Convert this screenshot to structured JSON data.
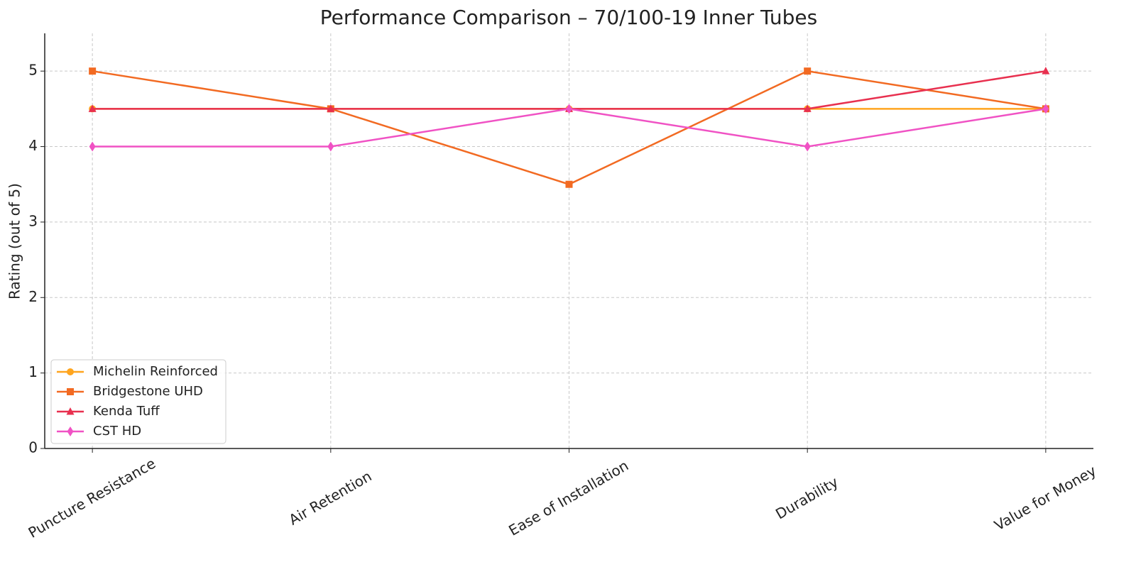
{
  "chart_data": {
    "type": "line",
    "title": "Performance Comparison – 70/100-19 Inner Tubes",
    "y_label": "Rating (out of 5)",
    "categories": [
      "Puncture Resistance",
      "Air Retention",
      "Ease of Installation",
      "Durability",
      "Value for Money"
    ],
    "series": [
      {
        "name": "Michelin Reinforced",
        "color": "#ffa51f",
        "marker": "circle",
        "values": [
          4.5,
          4.5,
          4.5,
          4.5,
          4.5
        ]
      },
      {
        "name": "Bridgestone UHD",
        "color": "#f26a22",
        "marker": "square",
        "values": [
          5,
          4.5,
          3.5,
          5,
          4.5
        ]
      },
      {
        "name": "Kenda Tuff",
        "color": "#e8304f",
        "marker": "triangle",
        "values": [
          4.5,
          4.5,
          4.5,
          4.5,
          5
        ]
      },
      {
        "name": "CST HD",
        "color": "#f052c4",
        "marker": "diamond",
        "values": [
          4,
          4,
          4.5,
          4,
          4.5
        ]
      }
    ],
    "ylim": [
      0,
      5.5
    ],
    "yticks": [
      0,
      1,
      2,
      3,
      4,
      5
    ],
    "grid": true,
    "legend": "lower left"
  }
}
